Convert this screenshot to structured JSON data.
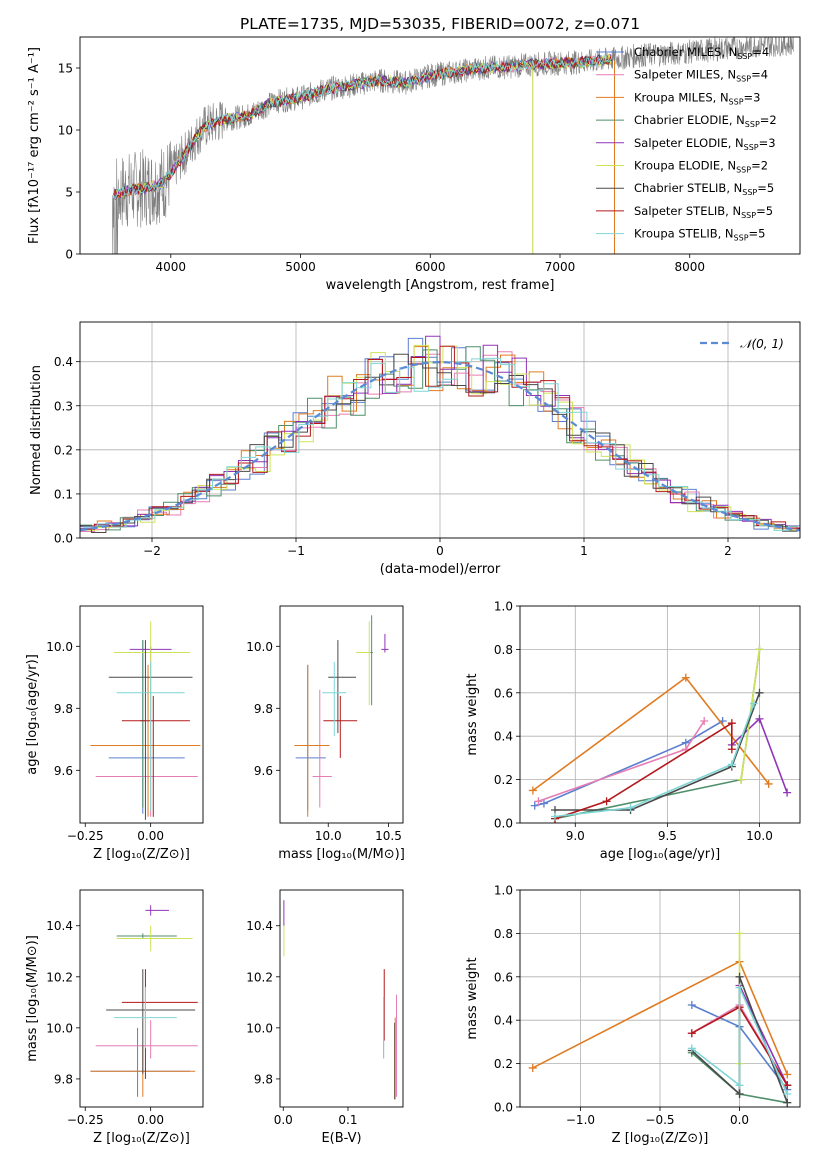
{
  "figure": {
    "title": "PLATE=1735, MJD=53035, FIBERID=0072, z=0.071"
  },
  "colors": {
    "series": [
      "#5a7fd0",
      "#e67cb4",
      "#e07b22",
      "#4f8f6a",
      "#8f35b8",
      "#cfe35a",
      "#4a4a4a",
      "#b3181c",
      "#7fd6d6"
    ],
    "data_gray": "#7f7f7f",
    "normal_dash": "#5a8ad6",
    "grid": "#b0b0b0"
  },
  "chart_data": [
    {
      "id": "spectrum",
      "type": "line",
      "xlabel": "wavelength [Angstrom, rest frame]",
      "ylabel": "Flux [fλ10⁻¹⁷ erg cm⁻² s⁻¹ A⁻¹]",
      "xlim": [
        3300,
        8850
      ],
      "ylim": [
        0,
        17.5
      ],
      "xticks": [
        4000,
        5000,
        6000,
        7000,
        8000
      ],
      "yticks": [
        0,
        5,
        10,
        15
      ],
      "grid": false,
      "legend_position": "top-right",
      "x_anchor": [
        3550,
        3700,
        3850,
        3950,
        4100,
        4250,
        4400,
        4600,
        4800,
        5000,
        5200,
        5400,
        5600,
        5800,
        6000,
        6200,
        6400,
        6600,
        6800,
        7000,
        7200,
        7400,
        7600,
        7900,
        8200,
        8500,
        8800
      ],
      "y_anchor": [
        4.8,
        5.2,
        5.4,
        5.8,
        8.0,
        10.2,
        10.8,
        11.2,
        12.3,
        12.6,
        13.3,
        13.6,
        14.0,
        13.8,
        14.4,
        14.7,
        15.0,
        15.1,
        15.3,
        15.4,
        15.5,
        15.7,
        16.0,
        16.2,
        16.5,
        16.8,
        17.0
      ],
      "legend": [
        {
          "label": "Chabrier MILES, N",
          "sub": "SSP",
          "suffix": "=4"
        },
        {
          "label": "Salpeter MILES, N",
          "sub": "SSP",
          "suffix": "=4"
        },
        {
          "label": "Kroupa MILES, N",
          "sub": "SSP",
          "suffix": "=3"
        },
        {
          "label": "Chabrier ELODIE, N",
          "sub": "SSP",
          "suffix": "=2"
        },
        {
          "label": "Salpeter ELODIE, N",
          "sub": "SSP",
          "suffix": "=3"
        },
        {
          "label": "Kroupa ELODIE, N",
          "sub": "SSP",
          "suffix": "=2"
        },
        {
          "label": "Chabrier STELIB, N",
          "sub": "SSP",
          "suffix": "=5"
        },
        {
          "label": "Salpeter STELIB, N",
          "sub": "SSP",
          "suffix": "=5"
        },
        {
          "label": "Kroupa STELIB, N",
          "sub": "SSP",
          "suffix": "=5"
        }
      ]
    },
    {
      "id": "residuals",
      "type": "line",
      "xlabel": "(data-model)/error",
      "ylabel": "Normed distribution",
      "xlim": [
        -2.5,
        2.5
      ],
      "ylim": [
        0,
        0.49
      ],
      "xticks": [
        -2,
        -1,
        0,
        1,
        2
      ],
      "yticks": [
        0.0,
        0.1,
        0.2,
        0.3,
        0.4
      ],
      "grid": true,
      "legend_position": "top-right",
      "legend_label": "𝒩(0, 1)",
      "bin_width": 0.1
    },
    {
      "id": "age_vs_Z",
      "type": "scatter",
      "xlabel": "Z [log₁₀(Z/Z⊙)]",
      "ylabel": "age  [log₁₀(age/yr)]",
      "xlim": [
        -0.27,
        0.2
      ],
      "ylim": [
        9.43,
        10.13
      ],
      "xticks": [
        -0.25,
        0.0
      ],
      "yticks": [
        9.6,
        9.8,
        10.0
      ],
      "grid": false,
      "points": [
        {
          "series": 0,
          "x": -0.03,
          "xlo": 0.13,
          "xhi": 0.16,
          "y": 9.64,
          "ylo": 0.18,
          "yhi": 0.38
        },
        {
          "series": 1,
          "x": 0.0,
          "xlo": 0.21,
          "xhi": 0.18,
          "y": 9.58,
          "ylo": 0.13,
          "yhi": 0.4
        },
        {
          "series": 2,
          "x": -0.01,
          "xlo": 0.22,
          "xhi": 0.2,
          "y": 9.68,
          "ylo": 0.23,
          "yhi": 0.26
        },
        {
          "series": 3,
          "x": -0.03,
          "xlo": 0.01,
          "xhi": 0.01,
          "y": 9.76,
          "ylo": 0.28,
          "yhi": 0.26
        },
        {
          "series": 4,
          "x": 0.0,
          "xlo": 0.08,
          "xhi": 0.08,
          "y": 9.99,
          "ylo": 0.01,
          "yhi": 0.01
        },
        {
          "series": 5,
          "x": 0.0,
          "xlo": 0.14,
          "xhi": 0.15,
          "y": 9.98,
          "ylo": 0.2,
          "yhi": 0.1
        },
        {
          "series": 6,
          "x": -0.02,
          "xlo": 0.14,
          "xhi": 0.18,
          "y": 9.9,
          "ylo": 0.46,
          "yhi": 0.12
        },
        {
          "series": 7,
          "x": 0.01,
          "xlo": 0.12,
          "xhi": 0.14,
          "y": 9.76,
          "ylo": 0.31,
          "yhi": 0.08
        },
        {
          "series": 8,
          "x": 0.0,
          "xlo": 0.13,
          "xhi": 0.13,
          "y": 9.85,
          "ylo": 0.38,
          "yhi": 0.1
        }
      ]
    },
    {
      "id": "age_vs_mass",
      "type": "scatter",
      "xlabel": "mass [log₁₀(M/M⊙)]",
      "ylabel": "",
      "xlim": [
        9.6,
        10.62
      ],
      "ylim": [
        9.43,
        10.13
      ],
      "xticks": [
        9.5,
        10.0,
        10.5
      ],
      "yticks": [
        9.6,
        9.8,
        10.0
      ],
      "grid": false,
      "points": [
        {
          "series": 0,
          "x": 9.83,
          "xlo": 0.1,
          "xhi": 0.15,
          "y": 9.64,
          "ylo": 0.17,
          "yhi": 0.3
        },
        {
          "series": 1,
          "x": 9.93,
          "xlo": 0.06,
          "xhi": 0.1,
          "y": 9.58,
          "ylo": 0.1,
          "yhi": 0.28
        },
        {
          "series": 2,
          "x": 9.83,
          "xlo": 0.11,
          "xhi": 0.18,
          "y": 9.68,
          "ylo": 0.23,
          "yhi": 0.26
        },
        {
          "series": 3,
          "x": 10.36,
          "xlo": 0.01,
          "xhi": 0.01,
          "y": 9.98,
          "ylo": 0.17,
          "yhi": 0.12
        },
        {
          "series": 4,
          "x": 10.47,
          "xlo": 0.03,
          "xhi": 0.03,
          "y": 9.99,
          "ylo": 0.01,
          "yhi": 0.05
        },
        {
          "series": 5,
          "x": 10.34,
          "xlo": 0.11,
          "xhi": 0.01,
          "y": 9.98,
          "ylo": 0.17,
          "yhi": 0.1
        },
        {
          "series": 6,
          "x": 10.08,
          "xlo": 0.08,
          "xhi": 0.15,
          "y": 9.9,
          "ylo": 0.18,
          "yhi": 0.12
        },
        {
          "series": 7,
          "x": 10.1,
          "xlo": 0.14,
          "xhi": 0.14,
          "y": 9.76,
          "ylo": 0.12,
          "yhi": 0.08
        },
        {
          "series": 8,
          "x": 10.05,
          "xlo": 0.1,
          "xhi": 0.1,
          "y": 9.85,
          "ylo": 0.14,
          "yhi": 0.1
        }
      ]
    },
    {
      "id": "weight_vs_age",
      "type": "line",
      "xlabel": "age  [log₁₀(age/yr)]",
      "ylabel": "mass weight",
      "xlim": [
        8.7,
        10.22
      ],
      "ylim": [
        0,
        1.0
      ],
      "xticks": [
        9.0,
        9.5,
        10.0
      ],
      "yticks": [
        0.0,
        0.2,
        0.4,
        0.6,
        0.8,
        1.0
      ],
      "grid": true,
      "series": [
        {
          "series": 0,
          "x": [
            8.78,
            8.83,
            9.6,
            9.8
          ],
          "y": [
            0.08,
            0.09,
            0.37,
            0.47
          ]
        },
        {
          "series": 1,
          "x": [
            8.8,
            9.6,
            9.7
          ],
          "y": [
            0.1,
            0.34,
            0.47
          ]
        },
        {
          "series": 2,
          "x": [
            8.77,
            9.6,
            10.05
          ],
          "y": [
            0.15,
            0.67,
            0.18
          ]
        },
        {
          "series": 3,
          "x": [
            8.89,
            9.9,
            10.0
          ],
          "y": [
            0.02,
            0.2,
            0.8
          ]
        },
        {
          "series": 4,
          "x": [
            9.85,
            10.0,
            10.15
          ],
          "y": [
            0.36,
            0.48,
            0.14
          ]
        },
        {
          "series": 5,
          "x": [
            9.9,
            10.0
          ],
          "y": [
            0.2,
            0.8
          ]
        },
        {
          "series": 6,
          "x": [
            8.89,
            9.3,
            9.85,
            10.0
          ],
          "y": [
            0.06,
            0.06,
            0.26,
            0.6
          ]
        },
        {
          "series": 7,
          "x": [
            8.89,
            9.17,
            9.85,
            9.85
          ],
          "y": [
            0.02,
            0.1,
            0.46,
            0.34
          ]
        },
        {
          "series": 8,
          "x": [
            8.89,
            9.3,
            9.85,
            9.97
          ],
          "y": [
            0.03,
            0.07,
            0.27,
            0.55
          ]
        }
      ]
    },
    {
      "id": "mass_vs_Z",
      "type": "scatter",
      "xlabel": "Z [log₁₀(Z/Z⊙)]",
      "ylabel": "mass [log₁₀(M/M⊙)]",
      "xlim": [
        -0.27,
        0.2
      ],
      "ylim": [
        9.69,
        10.54
      ],
      "xticks": [
        -0.25,
        0.0
      ],
      "yticks": [
        9.8,
        10.0,
        10.2,
        10.4
      ],
      "grid": false,
      "points": [
        {
          "series": 0,
          "x": -0.05,
          "xlo": 0.18,
          "xhi": 0.2,
          "y": 9.83,
          "ylo": 0.1,
          "yhi": 0.17
        },
        {
          "series": 1,
          "x": 0.0,
          "xlo": 0.21,
          "xhi": 0.18,
          "y": 9.93,
          "ylo": 0.05,
          "yhi": 0.1
        },
        {
          "series": 2,
          "x": -0.03,
          "xlo": 0.2,
          "xhi": 0.2,
          "y": 9.83,
          "ylo": 0.1,
          "yhi": 0.1
        },
        {
          "series": 3,
          "x": -0.03,
          "xlo": 0.1,
          "xhi": 0.13,
          "y": 10.36,
          "ylo": 0.01,
          "yhi": 0.01
        },
        {
          "series": 4,
          "x": 0.0,
          "xlo": 0.02,
          "xhi": 0.07,
          "y": 10.46,
          "ylo": 0.02,
          "yhi": 0.02
        },
        {
          "series": 5,
          "x": 0.0,
          "xlo": 0.13,
          "xhi": 0.16,
          "y": 10.35,
          "ylo": 0.05,
          "yhi": 0.05
        },
        {
          "series": 6,
          "x": -0.03,
          "xlo": 0.14,
          "xhi": 0.2,
          "y": 10.07,
          "ylo": 0.25,
          "yhi": 0.16
        },
        {
          "series": 7,
          "x": -0.02,
          "xlo": 0.09,
          "xhi": 0.2,
          "y": 10.1,
          "ylo": 0.3,
          "yhi": 0.13
        },
        {
          "series": 8,
          "x": -0.02,
          "xlo": 0.12,
          "xhi": 0.12,
          "y": 10.04,
          "ylo": 0.12,
          "yhi": 0.12
        }
      ]
    },
    {
      "id": "mass_vs_EBV",
      "type": "scatter",
      "xlabel": "E(B-V)",
      "ylabel": "",
      "xlim": [
        -0.005,
        0.185
      ],
      "ylim": [
        9.69,
        10.54
      ],
      "xticks": [
        0.0,
        0.1
      ],
      "yticks": [
        9.8,
        10.0,
        10.2,
        10.4
      ],
      "grid": false,
      "points": [
        {
          "series": 0,
          "x": 0.0,
          "xlo": 0,
          "xhi": 0,
          "y": 10.4,
          "ylo": 0.0,
          "yhi": 0.0
        },
        {
          "series": 3,
          "x": 0.155,
          "xlo": 0,
          "xhi": 0,
          "y": 10.0,
          "ylo": 0.12,
          "yhi": 0.12
        },
        {
          "series": 4,
          "x": 0.001,
          "xlo": 0,
          "xhi": 0,
          "y": 10.45,
          "ylo": 0.05,
          "yhi": 0.05
        },
        {
          "series": 5,
          "x": 0.001,
          "xlo": 0,
          "xhi": 0,
          "y": 10.34,
          "ylo": 0.06,
          "yhi": 0.06
        },
        {
          "series": 6,
          "x": 0.172,
          "xlo": 0,
          "xhi": 0,
          "y": 9.9,
          "ylo": 0.18,
          "yhi": 0.12
        },
        {
          "series": 7,
          "x": 0.156,
          "xlo": 0,
          "xhi": 0,
          "y": 10.1,
          "ylo": 0.15,
          "yhi": 0.13
        },
        {
          "series": 1,
          "x": 0.175,
          "xlo": 0,
          "xhi": 0,
          "y": 9.93,
          "ylo": 0.2,
          "yhi": 0.2
        },
        {
          "series": 2,
          "x": 0.173,
          "xlo": 0,
          "xhi": 0,
          "y": 9.88,
          "ylo": 0.16,
          "yhi": 0.16
        },
        {
          "series": 8,
          "x": 0.155,
          "xlo": 0,
          "xhi": 0,
          "y": 10.0,
          "ylo": 0.12,
          "yhi": 0.12
        }
      ]
    },
    {
      "id": "weight_vs_Z",
      "type": "line",
      "xlabel": "Z [log₁₀(Z/Z⊙)]",
      "ylabel": "mass weight",
      "xlim": [
        -1.38,
        0.38
      ],
      "ylim": [
        0,
        1.0
      ],
      "xticks": [
        -1.0,
        -0.5,
        0.0
      ],
      "yticks": [
        0.0,
        0.2,
        0.4,
        0.6,
        0.8,
        1.0
      ],
      "grid": true,
      "series": [
        {
          "series": 0,
          "x": [
            -0.3,
            0.0,
            0.3
          ],
          "y": [
            0.47,
            0.37,
            0.08
          ]
        },
        {
          "series": 1,
          "x": [
            -0.3,
            0.0,
            0.3
          ],
          "y": [
            0.34,
            0.47,
            0.1
          ]
        },
        {
          "series": 2,
          "x": [
            -1.3,
            0.0,
            0.3
          ],
          "y": [
            0.18,
            0.67,
            0.15
          ]
        },
        {
          "series": 3,
          "x": [
            -0.3,
            0.0,
            0.3
          ],
          "y": [
            0.25,
            0.06,
            0.02
          ]
        },
        {
          "series": 4,
          "x": [
            0.0,
            0.3
          ],
          "y": [
            0.56,
            0.1
          ]
        },
        {
          "series": 5,
          "x": [
            0.0,
            0.0
          ],
          "y": [
            0.2,
            0.8
          ]
        },
        {
          "series": 6,
          "x": [
            -0.3,
            0.0,
            0.0,
            0.3
          ],
          "y": [
            0.26,
            0.06,
            0.6,
            0.02
          ]
        },
        {
          "series": 7,
          "x": [
            -0.3,
            0.0,
            0.3
          ],
          "y": [
            0.34,
            0.46,
            0.1
          ]
        },
        {
          "series": 8,
          "x": [
            -0.3,
            0.0,
            0.0,
            0.3
          ],
          "y": [
            0.27,
            0.1,
            0.55,
            0.06
          ]
        }
      ]
    }
  ]
}
